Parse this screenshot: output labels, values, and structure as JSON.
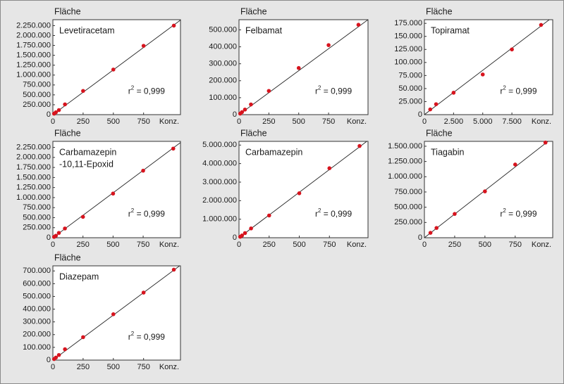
{
  "chart_data": [
    {
      "type": "scatter",
      "title_lines": [
        "Levetiracetam"
      ],
      "y_label": "Fläche",
      "x_label": "Konz.",
      "annotation": {
        "base": "r",
        "sup": "2",
        "text": " = 0,999"
      },
      "x": [
        10,
        25,
        50,
        100,
        250,
        500,
        750,
        1000
      ],
      "y": [
        25000,
        60000,
        115000,
        260000,
        600000,
        1140000,
        1740000,
        2250000
      ],
      "color": "#d7141e",
      "regression": {
        "x": [
          0,
          1055
        ],
        "y": [
          0,
          2390000
        ]
      },
      "xlim": [
        0,
        1055
      ],
      "ylim": [
        0,
        2400000
      ],
      "xticks": [
        0,
        250,
        500,
        750
      ],
      "yticks": [
        0,
        {
          "value": 250000,
          "label": "250.000"
        },
        {
          "value": 500000,
          "label": "500.000"
        },
        {
          "value": 750000,
          "label": "750.000"
        },
        {
          "value": 1000000,
          "label": "1.000.000"
        },
        {
          "value": 1250000,
          "label": "1.250.000"
        },
        {
          "value": 1500000,
          "label": "1.500.000"
        },
        {
          "value": 1750000,
          "label": "1.750.000"
        },
        {
          "value": 2000000,
          "label": "2.000.000"
        },
        {
          "value": 2250000,
          "label": "2.250.000"
        }
      ]
    },
    {
      "type": "scatter",
      "title_lines": [
        "Felbamat"
      ],
      "y_label": "Fläche",
      "x_label": "Konz.",
      "annotation": {
        "base": "r",
        "sup": "2",
        "text": " = 0,999"
      },
      "x": [
        10,
        25,
        50,
        100,
        250,
        500,
        750,
        1000
      ],
      "y": [
        6000,
        15000,
        30000,
        60000,
        140000,
        275000,
        410000,
        530000
      ],
      "color": "#d7141e",
      "regression": {
        "x": [
          0,
          1080
        ],
        "y": [
          0,
          560000
        ]
      },
      "xlim": [
        0,
        1080
      ],
      "ylim": [
        0,
        560000
      ],
      "xticks": [
        0,
        250,
        500,
        750
      ],
      "yticks": [
        0,
        {
          "value": 100000,
          "label": "100.000"
        },
        {
          "value": 200000,
          "label": "200.000"
        },
        {
          "value": 300000,
          "label": "300.000"
        },
        {
          "value": 400000,
          "label": "400.000"
        },
        {
          "value": 500000,
          "label": "500.000"
        }
      ]
    },
    {
      "type": "scatter",
      "title_lines": [
        "Topiramat"
      ],
      "y_label": "Fläche",
      "x_label": "Konz.",
      "annotation": {
        "base": "r",
        "sup": "2",
        "text": " = 0,999"
      },
      "x": [
        500,
        1000,
        2500,
        5000,
        7500,
        10000
      ],
      "y": [
        10000,
        20000,
        42000,
        77000,
        125000,
        172000
      ],
      "color": "#d7141e",
      "regression": {
        "x": [
          0,
          11000
        ],
        "y": [
          0,
          187000
        ]
      },
      "xlim": [
        0,
        11000
      ],
      "ylim": [
        0,
        182000
      ],
      "xticks": [
        0,
        {
          "value": 2500,
          "label": "2.500"
        },
        {
          "value": 5000,
          "label": "5.000"
        },
        {
          "value": 7500,
          "label": "7.500"
        }
      ],
      "yticks": [
        0,
        {
          "value": 25000,
          "label": "25.000"
        },
        {
          "value": 50000,
          "label": "50.000"
        },
        {
          "value": 75000,
          "label": "75.000"
        },
        {
          "value": 100000,
          "label": "100.000"
        },
        {
          "value": 125000,
          "label": "125.000"
        },
        {
          "value": 150000,
          "label": "150.000"
        },
        {
          "value": 175000,
          "label": "175.000"
        }
      ]
    },
    {
      "type": "scatter",
      "title_lines": [
        "Carbamazepin",
        "-10,11-Epoxid"
      ],
      "y_label": "Fläche",
      "x_label": "Konz.",
      "annotation": {
        "base": "r",
        "sup": "2",
        "text": " = 0,999"
      },
      "x": [
        10,
        25,
        50,
        100,
        250,
        500,
        750,
        1000
      ],
      "y": [
        20000,
        50000,
        120000,
        230000,
        520000,
        1100000,
        1670000,
        2220000
      ],
      "color": "#d7141e",
      "regression": {
        "x": [
          0,
          1060
        ],
        "y": [
          0,
          2370000
        ]
      },
      "xlim": [
        0,
        1060
      ],
      "ylim": [
        0,
        2400000
      ],
      "xticks": [
        0,
        250,
        500,
        750
      ],
      "yticks": [
        0,
        {
          "value": 250000,
          "label": "250.000"
        },
        {
          "value": 500000,
          "label": "500.000"
        },
        {
          "value": 750000,
          "label": "750.000"
        },
        {
          "value": 1000000,
          "label": "1.000.000"
        },
        {
          "value": 1250000,
          "label": "1.250.000"
        },
        {
          "value": 1500000,
          "label": "1.500.000"
        },
        {
          "value": 1750000,
          "label": "1.750.000"
        },
        {
          "value": 2000000,
          "label": "2.000.000"
        },
        {
          "value": 2250000,
          "label": "2.250.000"
        }
      ]
    },
    {
      "type": "scatter",
      "title_lines": [
        "Carbamazepin"
      ],
      "y_label": "Fläche",
      "x_label": "Konz.",
      "annotation": {
        "base": "r",
        "sup": "2",
        "text": " = 0,999"
      },
      "x": [
        10,
        25,
        50,
        100,
        250,
        500,
        750,
        1000
      ],
      "y": [
        50000,
        120000,
        250000,
        500000,
        1200000,
        2400000,
        3750000,
        4950000
      ],
      "color": "#d7141e",
      "regression": {
        "x": [
          0,
          1070
        ],
        "y": [
          0,
          5250000
        ]
      },
      "xlim": [
        0,
        1070
      ],
      "ylim": [
        0,
        5200000
      ],
      "xticks": [
        0,
        250,
        500,
        750
      ],
      "yticks": [
        0,
        {
          "value": 1000000,
          "label": "1.000.000"
        },
        {
          "value": 2000000,
          "label": "2.000.000"
        },
        {
          "value": 3000000,
          "label": "3.000.000"
        },
        {
          "value": 4000000,
          "label": "4.000.000"
        },
        {
          "value": 5000000,
          "label": "5.000.000"
        }
      ]
    },
    {
      "type": "scatter",
      "title_lines": [
        "Tiagabin"
      ],
      "y_label": "Fläche",
      "x_label": "Konz.",
      "annotation": {
        "base": "r",
        "sup": "2",
        "text": " = 0,999"
      },
      "x": [
        50,
        100,
        250,
        500,
        750,
        1000
      ],
      "y": [
        80000,
        160000,
        390000,
        760000,
        1200000,
        1560000
      ],
      "color": "#d7141e",
      "regression": {
        "x": [
          0,
          1060
        ],
        "y": [
          0,
          1640000
        ]
      },
      "xlim": [
        0,
        1060
      ],
      "ylim": [
        0,
        1580000
      ],
      "xticks": [
        0,
        250,
        500,
        750
      ],
      "yticks": [
        0,
        {
          "value": 250000,
          "label": "250.000"
        },
        {
          "value": 500000,
          "label": "500.000"
        },
        {
          "value": 750000,
          "label": "750.000"
        },
        {
          "value": 1000000,
          "label": "1.000.000"
        },
        {
          "value": 1250000,
          "label": "1.250.000"
        },
        {
          "value": 1500000,
          "label": "1.500.000"
        }
      ]
    },
    {
      "type": "scatter",
      "title_lines": [
        "Diazepam"
      ],
      "y_label": "Fläche",
      "x_label": "Konz.",
      "annotation": {
        "base": "r",
        "sup": "2",
        "text": " = 0,999"
      },
      "x": [
        10,
        25,
        50,
        100,
        250,
        500,
        750,
        1000
      ],
      "y": [
        8000,
        20000,
        40000,
        85000,
        180000,
        360000,
        530000,
        710000
      ],
      "color": "#d7141e",
      "regression": {
        "x": [
          0,
          1055
        ],
        "y": [
          0,
          745000
        ]
      },
      "xlim": [
        0,
        1055
      ],
      "ylim": [
        0,
        740000
      ],
      "xticks": [
        0,
        250,
        500,
        750
      ],
      "yticks": [
        0,
        {
          "value": 100000,
          "label": "100.000"
        },
        {
          "value": 200000,
          "label": "200.000"
        },
        {
          "value": 300000,
          "label": "300.000"
        },
        {
          "value": 400000,
          "label": "400.000"
        },
        {
          "value": 500000,
          "label": "500.000"
        },
        {
          "value": 600000,
          "label": "600.000"
        },
        {
          "value": 700000,
          "label": "700.000"
        }
      ]
    }
  ]
}
